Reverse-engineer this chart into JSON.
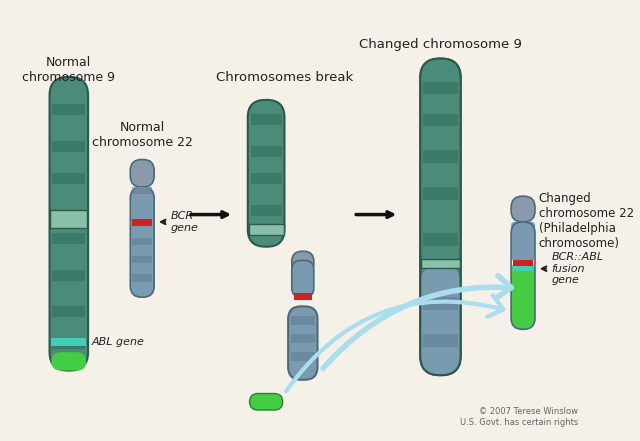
{
  "bg_color": "#f5f0e8",
  "title": "",
  "copyright": "© 2007 Terese Winslow\nU.S. Govt. has certain rights",
  "labels": {
    "chr9_normal": "Normal\nchromosome 9",
    "chr22_normal": "Normal\nchromosome 22",
    "chr_break": "Chromosomes break",
    "chr9_changed": "Changed chromosome 9",
    "chr22_changed": "Changed\nchromosome 22\n(Philadelphia\nchromosome)",
    "bcr_gene": "BCR\ngene",
    "abl_gene": "ABL gene",
    "fusion_gene": "BCR::ABL\nfusion\ngene"
  },
  "colors": {
    "chr9_body": "#4a8b7a",
    "chr9_stripe": "#2d6b5a",
    "chr9_light": "#7ab8a0",
    "chr22_body": "#7a9ab0",
    "chr22_stripe": "#5a7a90",
    "chr22_top": "#8a9aaa",
    "centromere": "#8a9aaa",
    "bcr_red": "#cc2222",
    "abl_cyan": "#44ccbb",
    "abl_green": "#44cc44",
    "arrow_black": "#222222",
    "arrow_light_blue": "#aaddee",
    "text_color": "#222222",
    "white": "#ffffff"
  }
}
